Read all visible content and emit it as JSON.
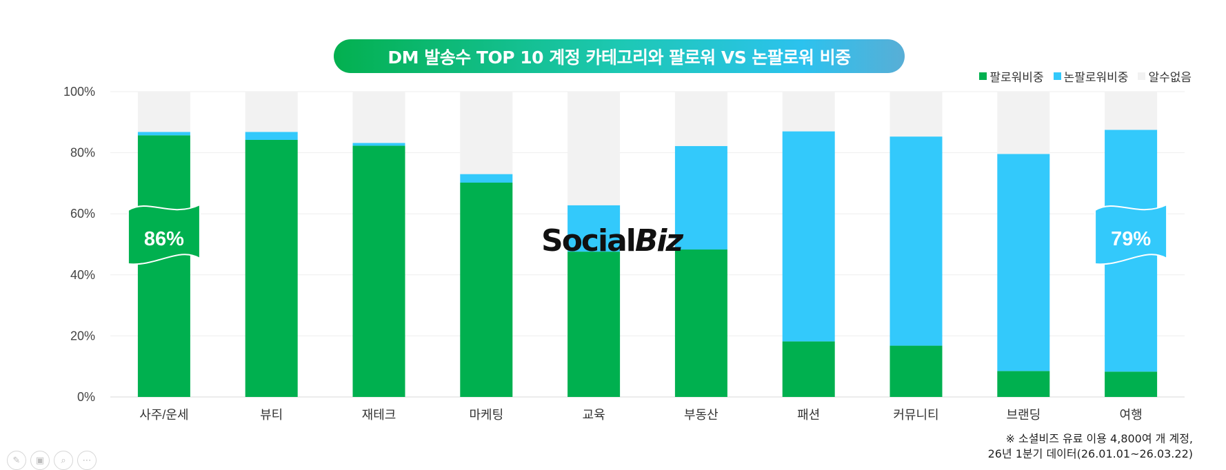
{
  "title": "DM 발송수 TOP 10 계정 카테고리와 팔로워 VS 논팔로워 비중",
  "legend": [
    {
      "label": "팔로워비중",
      "color": "#00b04f"
    },
    {
      "label": "논팔로워비중",
      "color": "#33c9fb"
    },
    {
      "label": "알수없음",
      "color": "#f2f2f2"
    }
  ],
  "watermark": {
    "part1": "Social",
    "part2": "Biz"
  },
  "footnote": {
    "line1": "※ 소셜비즈 유료 이용 4,800여 개 계정,",
    "line2": "26년 1분기 데이터(26.01.01~26.03.22)"
  },
  "callouts": [
    {
      "category": "사주/운세",
      "text": "86%",
      "color": "#00b04f"
    },
    {
      "category": "여행",
      "text": "79%",
      "color": "#33c9fb"
    }
  ],
  "toolbar": [
    {
      "name": "pen-icon",
      "glyph": "✎"
    },
    {
      "name": "slides-icon",
      "glyph": "▣"
    },
    {
      "name": "zoom-icon",
      "glyph": "⌕"
    },
    {
      "name": "more-icon",
      "glyph": "⋯"
    }
  ],
  "chart_data": {
    "type": "bar",
    "stacked": true,
    "categories": [
      "사주/운세",
      "뷰티",
      "재테크",
      "마케팅",
      "교육",
      "부동산",
      "패션",
      "커뮤니티",
      "브랜딩",
      "여행"
    ],
    "series": [
      {
        "name": "팔로워비중",
        "color": "#00b04f",
        "values": [
          85.7,
          84.2,
          82.3,
          70.2,
          47.6,
          48.3,
          18.2,
          16.8,
          8.5,
          8.3
        ]
      },
      {
        "name": "논팔로워비중",
        "color": "#33c9fb",
        "values": [
          1.1,
          2.6,
          0.9,
          2.8,
          15.2,
          33.9,
          68.8,
          68.5,
          71.1,
          79.2
        ]
      },
      {
        "name": "알수없음",
        "color": "#f2f2f2",
        "values": [
          13.2,
          13.2,
          16.8,
          27.0,
          37.2,
          17.8,
          13.0,
          14.7,
          20.4,
          12.5
        ]
      }
    ],
    "yticks": [
      "0%",
      "20%",
      "40%",
      "60%",
      "80%",
      "100%"
    ],
    "ylim": [
      0,
      100
    ],
    "grid": true,
    "legend_position": "top-right"
  }
}
